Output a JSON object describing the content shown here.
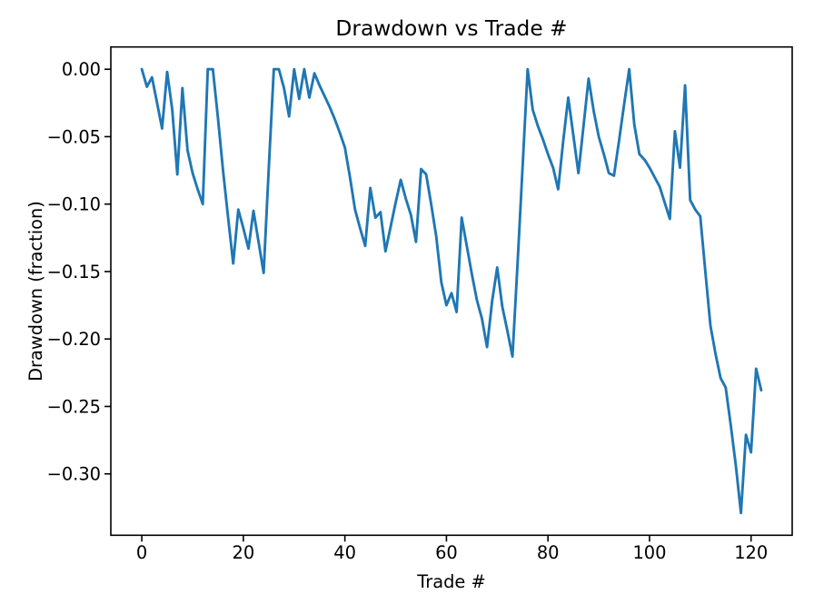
{
  "chart_data": {
    "type": "line",
    "title": "Drawdown vs Trade #",
    "xlabel": "Trade #",
    "ylabel": "Drawdown (fraction)",
    "grid": false,
    "legend": "none",
    "line_color": "#1f77b4",
    "background": "#ffffff",
    "spine_color": "#000000",
    "text_color": "#000000",
    "xlim": [
      -6.1,
      128.1
    ],
    "ylim": [
      -0.3455,
      0.0165
    ],
    "xticks": {
      "values": [
        0,
        20,
        40,
        60,
        80,
        100,
        120
      ],
      "labels": [
        "0",
        "20",
        "40",
        "60",
        "80",
        "100",
        "120"
      ]
    },
    "yticks": {
      "values": [
        0.0,
        -0.05,
        -0.1,
        -0.15,
        -0.2,
        -0.25,
        -0.3
      ],
      "labels": [
        "0.00",
        "−0.05",
        "−0.10",
        "−0.15",
        "−0.20",
        "−0.25",
        "−0.30"
      ]
    },
    "x": [
      0,
      1,
      2,
      3,
      4,
      5,
      6,
      7,
      8,
      9,
      10,
      11,
      12,
      13,
      14,
      15,
      16,
      17,
      18,
      19,
      20,
      21,
      22,
      23,
      24,
      25,
      26,
      27,
      28,
      29,
      30,
      31,
      32,
      33,
      34,
      35,
      36,
      37,
      38,
      39,
      40,
      41,
      42,
      43,
      44,
      45,
      46,
      47,
      48,
      49,
      50,
      51,
      52,
      53,
      54,
      55,
      56,
      57,
      58,
      59,
      60,
      61,
      62,
      63,
      64,
      65,
      66,
      67,
      68,
      69,
      70,
      71,
      72,
      73,
      74,
      75,
      76,
      77,
      78,
      79,
      80,
      81,
      82,
      83,
      84,
      85,
      86,
      87,
      88,
      89,
      90,
      91,
      92,
      93,
      94,
      95,
      96,
      97,
      98,
      99,
      100,
      101,
      102,
      103,
      104,
      105,
      106,
      107,
      108,
      109,
      110,
      111,
      112,
      113,
      114,
      115,
      116,
      117,
      118,
      119,
      120,
      121,
      122
    ],
    "values": [
      0.0,
      -0.013,
      -0.006,
      -0.025,
      -0.044,
      -0.002,
      -0.03,
      -0.078,
      -0.014,
      -0.06,
      -0.077,
      -0.089,
      -0.1,
      0.0,
      0.0,
      -0.036,
      -0.075,
      -0.11,
      -0.144,
      -0.104,
      -0.118,
      -0.133,
      -0.105,
      -0.128,
      -0.151,
      -0.074,
      0.0,
      0.0,
      -0.014,
      -0.035,
      0.0,
      -0.022,
      0.0,
      -0.021,
      -0.003,
      -0.012,
      -0.02,
      -0.028,
      -0.037,
      -0.047,
      -0.058,
      -0.08,
      -0.104,
      -0.118,
      -0.131,
      -0.088,
      -0.11,
      -0.106,
      -0.135,
      -0.117,
      -0.099,
      -0.082,
      -0.096,
      -0.108,
      -0.128,
      -0.074,
      -0.078,
      -0.1,
      -0.124,
      -0.158,
      -0.175,
      -0.166,
      -0.18,
      -0.11,
      -0.131,
      -0.152,
      -0.171,
      -0.185,
      -0.206,
      -0.172,
      -0.147,
      -0.176,
      -0.194,
      -0.213,
      -0.144,
      -0.073,
      0.0,
      -0.03,
      -0.042,
      -0.052,
      -0.063,
      -0.073,
      -0.089,
      -0.053,
      -0.021,
      -0.049,
      -0.077,
      -0.042,
      -0.007,
      -0.031,
      -0.05,
      -0.063,
      -0.077,
      -0.079,
      -0.053,
      -0.026,
      0.0,
      -0.041,
      -0.063,
      -0.067,
      -0.073,
      -0.08,
      -0.087,
      -0.099,
      -0.111,
      -0.046,
      -0.073,
      -0.012,
      -0.097,
      -0.104,
      -0.109,
      -0.15,
      -0.19,
      -0.211,
      -0.229,
      -0.236,
      -0.264,
      -0.294,
      -0.329,
      -0.271,
      -0.284,
      -0.222,
      -0.238
    ]
  }
}
